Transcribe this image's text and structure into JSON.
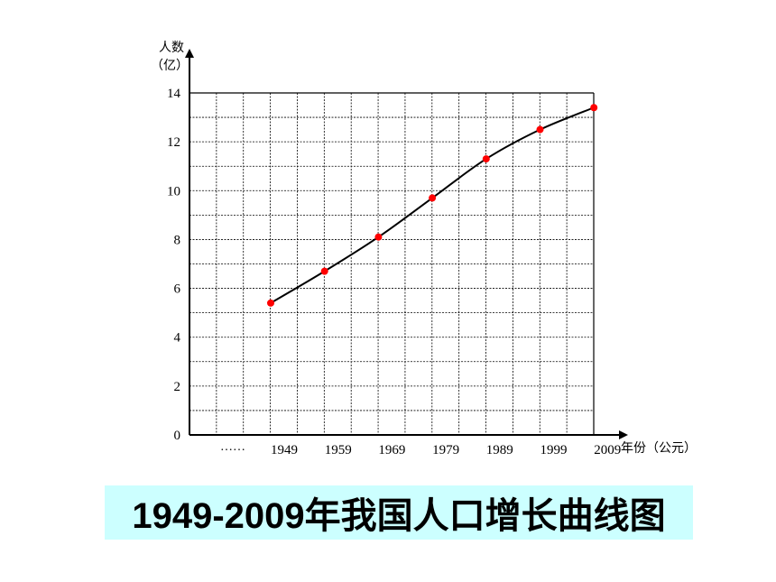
{
  "chart_data": {
    "type": "line",
    "ylabel_line1": "人数",
    "ylabel_line2": "（亿）",
    "xlabel": "年份（公元）",
    "x_ellipsis": "……",
    "ylim": [
      0,
      14
    ],
    "yticks": [
      0,
      2,
      4,
      6,
      8,
      10,
      12,
      14
    ],
    "x": [
      "1949",
      "1959",
      "1969",
      "1979",
      "1989",
      "1999",
      "2009"
    ],
    "values": [
      5.4,
      6.7,
      8.1,
      9.7,
      11.3,
      12.5,
      13.4
    ],
    "grid": true,
    "line_color": "#000000",
    "marker_color": "#ff0000"
  },
  "caption": "1949-2009年我国人口增长曲线图",
  "colors": {
    "caption_bg": "#ccffff"
  }
}
